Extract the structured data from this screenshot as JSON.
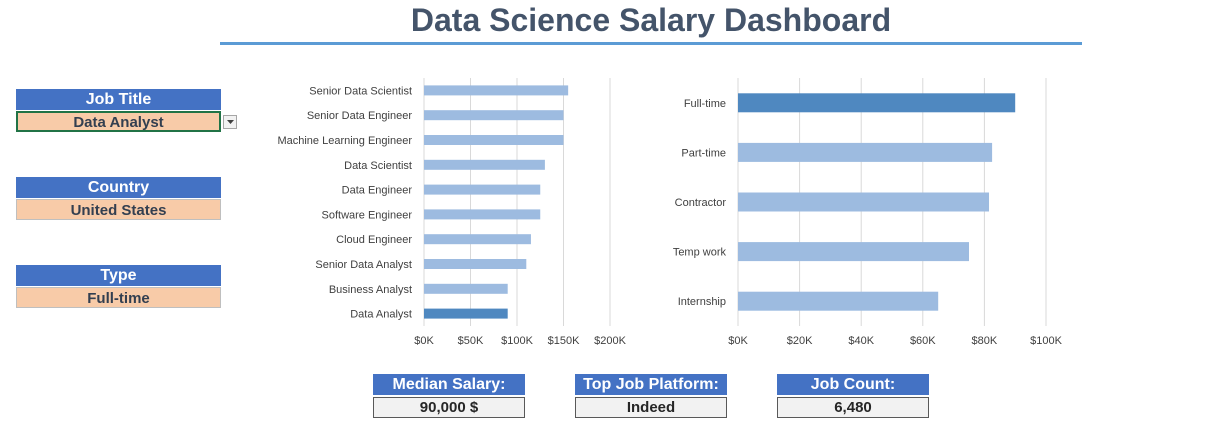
{
  "title": "Data Science Salary Dashboard",
  "filters": [
    {
      "label": "Job Title",
      "value": "Data Analyst"
    },
    {
      "label": "Country",
      "value": "United States"
    },
    {
      "label": "Type",
      "value": "Full-time"
    }
  ],
  "kpis": [
    {
      "label": "Median Salary:",
      "value": "90,000 $"
    },
    {
      "label": "Top Job Platform:",
      "value": "Indeed"
    },
    {
      "label": "Job Count:",
      "value": "6,480"
    }
  ],
  "colors": {
    "bar": "#9dbbe0",
    "highlight": "#4f88c0",
    "gridline": "#d9d9d9",
    "accent": "#4472c4",
    "filter_value_bg": "#f8cba8"
  },
  "chart_data": [
    {
      "type": "bar",
      "orientation": "horizontal",
      "categories": [
        "Senior Data Scientist",
        "Senior Data Engineer",
        "Machine Learning Engineer",
        "Data Scientist",
        "Data Engineer",
        "Software Engineer",
        "Cloud Engineer",
        "Senior Data Analyst",
        "Business Analyst",
        "Data Analyst"
      ],
      "values": [
        155000,
        150000,
        150000,
        130000,
        125000,
        125000,
        115000,
        110000,
        90000,
        90000
      ],
      "highlight": "Data Analyst",
      "xlim": [
        0,
        200000
      ],
      "xticks": [
        "$0K",
        "$50K",
        "$100K",
        "$150K",
        "$200K"
      ],
      "grid": true
    },
    {
      "type": "bar",
      "orientation": "horizontal",
      "categories": [
        "Full-time",
        "Part-time",
        "Contractor",
        "Temp work",
        "Internship"
      ],
      "values": [
        90000,
        82500,
        81500,
        75000,
        65000
      ],
      "highlight": "Full-time",
      "xlim": [
        0,
        100000
      ],
      "xticks": [
        "$0K",
        "$20K",
        "$40K",
        "$60K",
        "$80K",
        "$100K"
      ],
      "grid": true
    }
  ]
}
